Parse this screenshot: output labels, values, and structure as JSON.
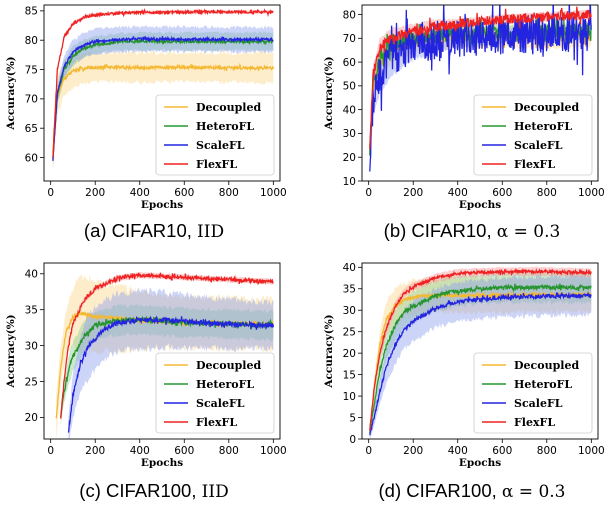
{
  "chart_data": [
    {
      "type": "line",
      "caption_label": "(a)",
      "caption_dataset": "CIFAR10,",
      "caption_setting": "IID",
      "xlabel": "Epochs",
      "ylabel": "Accuracy(%)",
      "xlim": [
        -30,
        1030
      ],
      "ylim": [
        56,
        86
      ],
      "xticks": [
        0,
        200,
        400,
        600,
        800,
        1000
      ],
      "yticks": [
        60,
        65,
        70,
        75,
        80,
        85
      ],
      "legend_position": "lower-right",
      "grid": false,
      "series": [
        {
          "name": "Decoupled",
          "color": "#f5b833",
          "band_color": "#fbd88c",
          "x": [
            10,
            30,
            60,
            100,
            150,
            200,
            300,
            400,
            600,
            800,
            1000
          ],
          "y": [
            61,
            70.5,
            73.5,
            74.8,
            75.2,
            75.4,
            75.4,
            75.3,
            75.4,
            75.3,
            75.3
          ],
          "band": [
            3.2,
            3.4,
            3.0,
            2.8,
            2.6,
            2.5,
            2.5,
            2.5,
            2.5,
            2.5,
            2.5
          ],
          "noise": 0.25
        },
        {
          "name": "HeteroFL",
          "color": "#27952f",
          "band_color": "#8fce93",
          "x": [
            10,
            30,
            60,
            100,
            150,
            200,
            300,
            400,
            600,
            800,
            1000
          ],
          "y": [
            60,
            70.5,
            75.0,
            77.3,
            78.6,
            79.2,
            79.7,
            79.8,
            79.8,
            79.8,
            79.8
          ],
          "band": [
            1.2,
            1.5,
            1.6,
            1.6,
            1.5,
            1.5,
            1.5,
            1.5,
            1.5,
            1.5,
            1.5
          ],
          "noise": 0.22
        },
        {
          "name": "ScaleFL",
          "color": "#2424e0",
          "band_color": "#8e9ff0",
          "x": [
            10,
            30,
            60,
            100,
            150,
            200,
            300,
            400,
            600,
            800,
            1000
          ],
          "y": [
            59.5,
            71.0,
            75.5,
            78.0,
            79.2,
            79.8,
            80.1,
            80.2,
            80.2,
            80.1,
            80.1
          ],
          "band": [
            1.5,
            1.6,
            1.8,
            2.0,
            2.1,
            2.1,
            2.1,
            2.1,
            2.1,
            2.1,
            2.1
          ],
          "noise": 0.22
        },
        {
          "name": "FlexFL",
          "color": "#ee2222",
          "band_color": "#f69a9a",
          "x": [
            10,
            30,
            60,
            100,
            150,
            200,
            300,
            400,
            600,
            800,
            1000
          ],
          "y": [
            60,
            75,
            80.5,
            82.8,
            83.9,
            84.3,
            84.6,
            84.7,
            84.8,
            84.8,
            84.8
          ],
          "band": [
            0.4,
            0.4,
            0.4,
            0.35,
            0.3,
            0.3,
            0.3,
            0.3,
            0.3,
            0.3,
            0.3
          ],
          "noise": 0.2
        }
      ]
    },
    {
      "type": "line",
      "caption_label": "(b)",
      "caption_dataset": "CIFAR10,",
      "caption_setting": "α = 0.3",
      "xlabel": "Epochs",
      "ylabel": "Accuracy(%)",
      "xlim": [
        -30,
        1030
      ],
      "ylim": [
        10,
        84
      ],
      "xticks": [
        0,
        200,
        400,
        600,
        800,
        1000
      ],
      "yticks": [
        10,
        20,
        30,
        40,
        50,
        60,
        70,
        80
      ],
      "legend_position": "lower-right",
      "grid": false,
      "series": [
        {
          "name": "Decoupled",
          "color": "#f5b833",
          "band_color": "#fbd88c",
          "x": [
            5,
            20,
            50,
            100,
            200,
            300,
            400,
            600,
            800,
            1000
          ],
          "y": [
            22,
            48,
            60,
            65,
            69,
            70,
            71,
            71,
            71,
            71.5
          ],
          "band": [
            4,
            6,
            6,
            5,
            5,
            5,
            5,
            5,
            5,
            5
          ],
          "noise": 2.5
        },
        {
          "name": "HeteroFL",
          "color": "#27952f",
          "band_color": "#8fce93",
          "x": [
            5,
            20,
            50,
            100,
            200,
            300,
            400,
            600,
            800,
            1000
          ],
          "y": [
            22,
            50,
            62,
            67,
            70,
            71,
            72,
            72.5,
            72.5,
            73
          ],
          "band": [
            3,
            4,
            4,
            4,
            3,
            3,
            3,
            3,
            3,
            3
          ],
          "noise": 3.0
        },
        {
          "name": "ScaleFL",
          "color": "#2424e0",
          "band_color": "#8e9ff0",
          "x": [
            5,
            20,
            50,
            100,
            200,
            300,
            400,
            600,
            800,
            1000
          ],
          "y": [
            20,
            45,
            56,
            62,
            67,
            69,
            70,
            71,
            72,
            72
          ],
          "band": [
            4,
            8,
            9,
            8,
            6,
            5,
            4,
            3,
            3,
            3
          ],
          "noise": 8.0
        },
        {
          "name": "FlexFL",
          "color": "#ee2222",
          "band_color": "#f69a9a",
          "x": [
            5,
            20,
            50,
            100,
            200,
            300,
            400,
            600,
            800,
            1000
          ],
          "y": [
            24,
            55,
            66,
            70,
            73,
            75,
            76,
            78,
            79,
            80
          ],
          "band": [
            3,
            4,
            4,
            4,
            3,
            3,
            2,
            2,
            2,
            2
          ],
          "noise": 2.0
        }
      ]
    },
    {
      "type": "line",
      "caption_label": "(c)",
      "caption_dataset": "CIFAR100,",
      "caption_setting": "IID",
      "xlabel": "Epochs",
      "ylabel": "Accuracy(%)",
      "xlim": [
        -30,
        1030
      ],
      "ylim": [
        17,
        41.5
      ],
      "xticks": [
        0,
        200,
        400,
        600,
        800,
        1000
      ],
      "yticks": [
        20,
        25,
        30,
        35,
        40
      ],
      "legend_position": "lower-right",
      "grid": false,
      "series": [
        {
          "name": "Decoupled",
          "color": "#f5b833",
          "band_color": "#fbd88c",
          "x": [
            25,
            45,
            70,
            100,
            130,
            170,
            200,
            300,
            400,
            600,
            800,
            1000
          ],
          "y": [
            20,
            27,
            32,
            34,
            34.5,
            34.3,
            34,
            33.8,
            33.5,
            33.2,
            33.1,
            33
          ],
          "band": [
            3,
            3,
            3,
            4,
            5,
            5,
            5,
            4.5,
            4,
            3.5,
            3.5,
            3.5
          ],
          "noise": 0.25
        },
        {
          "name": "HeteroFL",
          "color": "#27952f",
          "band_color": "#8fce93",
          "x": [
            45,
            60,
            80,
            100,
            150,
            200,
            300,
            400,
            600,
            800,
            1000
          ],
          "y": [
            20,
            23.5,
            26.5,
            28.5,
            31.3,
            32.8,
            33.5,
            33.6,
            33.2,
            33.0,
            32.8
          ],
          "band": [
            1,
            1.5,
            2,
            2,
            2,
            2,
            2,
            2,
            2,
            2,
            2
          ],
          "noise": 0.3
        },
        {
          "name": "ScaleFL",
          "color": "#2424e0",
          "band_color": "#8e9ff0",
          "x": [
            80,
            100,
            130,
            160,
            200,
            250,
            300,
            400,
            500,
            600,
            800,
            1000
          ],
          "y": [
            18,
            23,
            27,
            29.5,
            31,
            32.4,
            33.2,
            33.6,
            33.6,
            33.4,
            33,
            32.8
          ],
          "band": [
            2,
            3,
            4,
            4.5,
            4.5,
            4.2,
            4,
            4,
            3.8,
            3.6,
            3.4,
            3.2
          ],
          "noise": 0.35
        },
        {
          "name": "FlexFL",
          "color": "#ee2222",
          "band_color": "#f69a9a",
          "x": [
            45,
            60,
            80,
            100,
            150,
            200,
            300,
            400,
            600,
            800,
            1000
          ],
          "y": [
            20,
            25,
            30,
            33,
            36.3,
            37.9,
            39.4,
            39.8,
            39.5,
            39.2,
            38.9
          ],
          "band": [
            0.5,
            0.5,
            0.5,
            0.5,
            0.4,
            0.4,
            0.4,
            0.4,
            0.4,
            0.4,
            0.4
          ],
          "noise": 0.25
        }
      ]
    },
    {
      "type": "line",
      "caption_label": "(d)",
      "caption_dataset": "CIFAR100,",
      "caption_setting": "α = 0.3",
      "xlabel": "Epochs",
      "ylabel": "Accuracy(%)",
      "xlim": [
        -30,
        1030
      ],
      "ylim": [
        0,
        41
      ],
      "xticks": [
        0,
        200,
        400,
        600,
        800,
        1000
      ],
      "yticks": [
        0,
        5,
        10,
        15,
        20,
        25,
        30,
        35,
        40
      ],
      "legend_position": "lower-right",
      "grid": false,
      "series": [
        {
          "name": "Decoupled",
          "color": "#f5b833",
          "band_color": "#fbd88c",
          "x": [
            5,
            25,
            50,
            80,
            120,
            160,
            200,
            300,
            400,
            600,
            800,
            1000
          ],
          "y": [
            2,
            12,
            22,
            28,
            31,
            32.3,
            33,
            33.5,
            33.5,
            33.5,
            33.6,
            33.6
          ],
          "band": [
            1,
            2,
            3,
            4,
            4,
            4,
            4,
            4,
            4,
            4,
            4,
            4
          ],
          "noise": 0.35
        },
        {
          "name": "HeteroFL",
          "color": "#27952f",
          "band_color": "#8fce93",
          "x": [
            5,
            25,
            50,
            80,
            120,
            160,
            200,
            300,
            400,
            600,
            800,
            1000
          ],
          "y": [
            1.5,
            8,
            16,
            22,
            26.5,
            29.5,
            31,
            33.3,
            34.5,
            35.3,
            35.3,
            35.3
          ],
          "band": [
            1,
            2,
            3,
            3.5,
            3.5,
            3.5,
            3.5,
            3.5,
            3.5,
            3.5,
            3.5,
            3.5
          ],
          "noise": 0.45
        },
        {
          "name": "ScaleFL",
          "color": "#2424e0",
          "band_color": "#8e9ff0",
          "x": [
            5,
            25,
            50,
            80,
            120,
            160,
            200,
            300,
            400,
            600,
            800,
            1000
          ],
          "y": [
            1,
            5,
            11,
            17,
            22,
            25.5,
            27.5,
            30.5,
            32,
            33,
            33.3,
            33.5
          ],
          "band": [
            1,
            2,
            3,
            4,
            4.5,
            4.5,
            4.5,
            4.5,
            4.5,
            4.5,
            4.5,
            4.5
          ],
          "noise": 0.45
        },
        {
          "name": "FlexFL",
          "color": "#ee2222",
          "band_color": "#f69a9a",
          "x": [
            5,
            25,
            50,
            80,
            120,
            160,
            200,
            300,
            400,
            600,
            800,
            1000
          ],
          "y": [
            2,
            12,
            20,
            26,
            31,
            34,
            35.5,
            37.5,
            38.6,
            39,
            39,
            38.7
          ],
          "band": [
            1,
            1.5,
            1.5,
            1.5,
            1.2,
            1,
            1,
            1,
            1,
            1,
            1,
            1
          ],
          "noise": 0.35
        }
      ]
    }
  ]
}
